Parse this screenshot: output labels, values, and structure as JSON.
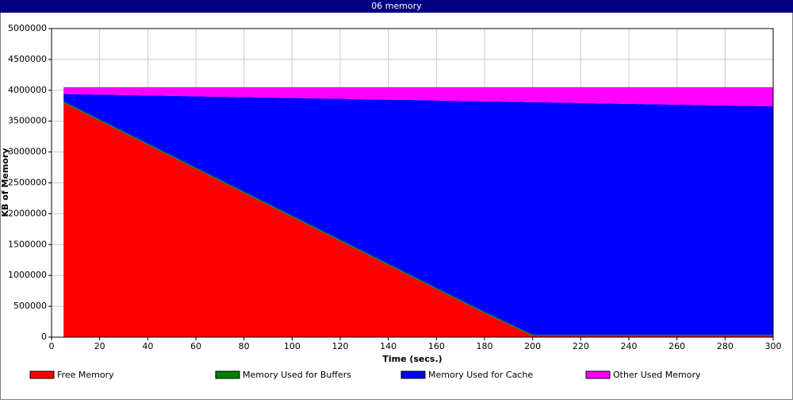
{
  "chart_data": {
    "type": "area",
    "title": "06 memory",
    "xlabel": "Time (secs.)",
    "ylabel": "KB of Memory",
    "stacked": true,
    "grid": true,
    "legend": "bottom",
    "x": [
      5,
      20,
      40,
      60,
      80,
      100,
      120,
      140,
      160,
      180,
      200,
      220,
      240,
      260,
      280,
      300
    ],
    "series": [
      {
        "name": "Free Memory",
        "color": "#ff0000",
        "values": [
          3800000,
          3508000,
          3118000,
          2728000,
          2338000,
          1949000,
          1559000,
          1169000,
          779000,
          390000,
          20000,
          20000,
          20000,
          20000,
          20000,
          20000
        ]
      },
      {
        "name": "Memory Used for Buffers",
        "color": "#008000",
        "values": [
          20000,
          20000,
          20000,
          20000,
          20000,
          20000,
          20000,
          20000,
          20000,
          20000,
          20000,
          20000,
          20000,
          20000,
          20000,
          20000
        ]
      },
      {
        "name": "Memory Used for Cache",
        "color": "#0000ff",
        "values": [
          120000,
          401800,
          778300,
          1154700,
          1531200,
          1906600,
          2283000,
          2659500,
          3035900,
          3411400,
          3767800,
          3754200,
          3740700,
          3727100,
          3713600,
          3700000
        ]
      },
      {
        "name": "Other Used Memory",
        "color": "#ff00ff",
        "values": [
          110000,
          120200,
          133700,
          147300,
          160800,
          174400,
          188000,
          201500,
          215100,
          228600,
          242200,
          255800,
          269300,
          282900,
          296400,
          310000
        ]
      }
    ],
    "xlim": [
      0,
      300
    ],
    "xticks": [
      0,
      20,
      40,
      60,
      80,
      100,
      120,
      140,
      160,
      180,
      200,
      220,
      240,
      260,
      280,
      300
    ],
    "ylim": [
      0,
      5000000
    ],
    "yticks": [
      0,
      500000,
      1000000,
      1500000,
      2000000,
      2500000,
      3000000,
      3500000,
      4000000,
      4500000,
      5000000
    ]
  }
}
